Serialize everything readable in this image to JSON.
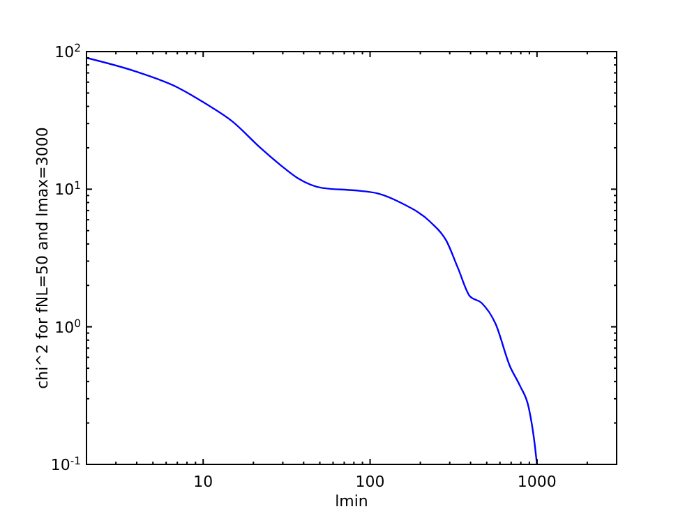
{
  "chart_data": {
    "type": "line",
    "xlabel": "lmin",
    "ylabel": "chi^2 for fNL=50 and lmax=3000",
    "log": "xy",
    "grid": false,
    "marker": "none",
    "line_style": "solid",
    "x": [
      2,
      3.9,
      7,
      10.3,
      15,
      22,
      29,
      37,
      52,
      81,
      112,
      155,
      229,
      287,
      337,
      396,
      466,
      565,
      687,
      793,
      891,
      969,
      1000
    ],
    "series": [
      {
        "color": "#0000ff",
        "values": [
          90,
          72,
          55,
          42,
          31,
          20,
          15,
          12,
          10.2,
          9.8,
          9.3,
          7.9,
          5.8,
          4.2,
          2.65,
          1.67,
          1.49,
          1.05,
          0.52,
          0.37,
          0.26,
          0.14,
          0.1
        ]
      }
    ],
    "xlim": [
      2,
      3000
    ],
    "ylim": [
      0.1,
      100
    ],
    "xticks": [
      {
        "value": 2,
        "label": null
      },
      {
        "value": 3,
        "label": null
      },
      {
        "value": 4,
        "label": null
      },
      {
        "value": 5,
        "label": null
      },
      {
        "value": 6,
        "label": null
      },
      {
        "value": 7,
        "label": null
      },
      {
        "value": 8,
        "label": null
      },
      {
        "value": 9,
        "label": null
      },
      10,
      {
        "value": 20,
        "label": null
      },
      {
        "value": 30,
        "label": null
      },
      {
        "value": 40,
        "label": null
      },
      {
        "value": 50,
        "label": null
      },
      {
        "value": 60,
        "label": null
      },
      {
        "value": 70,
        "label": null
      },
      {
        "value": 80,
        "label": null
      },
      {
        "value": 90,
        "label": null
      },
      100,
      {
        "value": 200,
        "label": null
      },
      {
        "value": 300,
        "label": null
      },
      {
        "value": 400,
        "label": null
      },
      {
        "value": 500,
        "label": null
      },
      {
        "value": 600,
        "label": null
      },
      {
        "value": 700,
        "label": null
      },
      {
        "value": 800,
        "label": null
      },
      {
        "value": 900,
        "label": null
      },
      1000,
      {
        "value": 2000,
        "label": null
      },
      {
        "value": 3000,
        "label": null
      }
    ],
    "yticks": [
      {
        "value": 0.1,
        "label": "10$^{-1}$"
      },
      {
        "value": 0.2,
        "label": null
      },
      {
        "value": 0.3,
        "label": null
      },
      {
        "value": 0.4,
        "label": null
      },
      {
        "value": 0.5,
        "label": null
      },
      {
        "value": 0.6,
        "label": null
      },
      {
        "value": 0.7,
        "label": null
      },
      {
        "value": 0.8,
        "label": null
      },
      {
        "value": 0.9,
        "label": null
      },
      {
        "value": 1,
        "label": "10$^{0}$"
      },
      {
        "value": 2,
        "label": null
      },
      {
        "value": 3,
        "label": null
      },
      {
        "value": 4,
        "label": null
      },
      {
        "value": 5,
        "label": null
      },
      {
        "value": 6,
        "label": null
      },
      {
        "value": 7,
        "label": null
      },
      {
        "value": 8,
        "label": null
      },
      {
        "value": 9,
        "label": null
      },
      {
        "value": 10,
        "label": "10$^{1}$"
      },
      {
        "value": 20,
        "label": null
      },
      {
        "value": 30,
        "label": null
      },
      {
        "value": 40,
        "label": null
      },
      {
        "value": 50,
        "label": null
      },
      {
        "value": 60,
        "label": null
      },
      {
        "value": 70,
        "label": null
      },
      {
        "value": 80,
        "label": null
      },
      {
        "value": 90,
        "label": null
      },
      {
        "value": 100,
        "label": "10$^{2}$"
      }
    ]
  }
}
